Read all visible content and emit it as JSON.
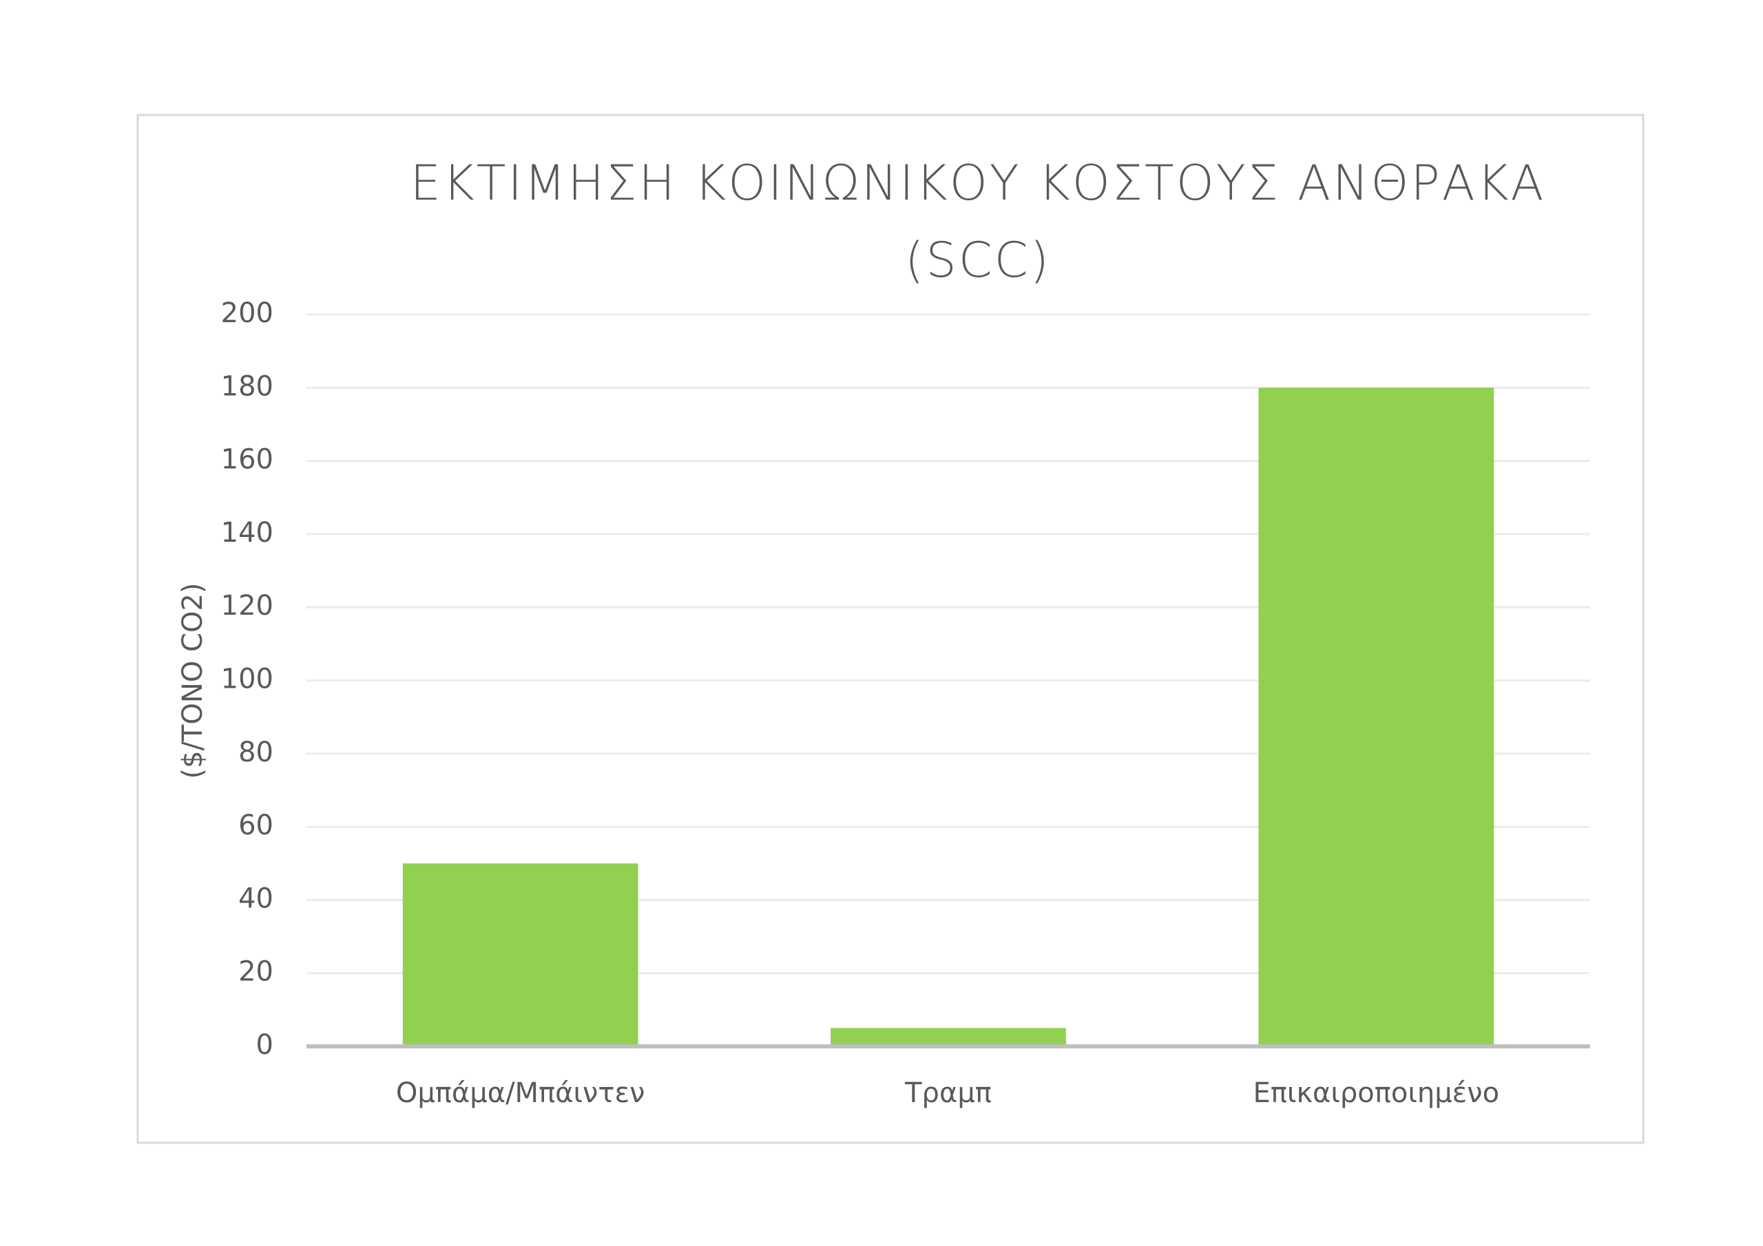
{
  "chart_data": {
    "type": "bar",
    "title": "ΕΚΤΙΜΗΣΗ ΚΟΙΝΩΝΙΚΟΥ ΚΟΣΤΟΥΣ ΑΝΘΡΑΚΑ (SCC)",
    "y_label": "($/ΤΟΝΟ CO2)",
    "categories": [
      "Ομπάμα/Μπάιντεν",
      "Τραμπ",
      "Επικαιροποιημένο"
    ],
    "values": [
      50,
      5,
      180
    ],
    "color": "#92d050",
    "ylim": [
      0,
      200
    ],
    "yticks": [
      0,
      20,
      40,
      60,
      80,
      100,
      120,
      140,
      160,
      180,
      200
    ],
    "grid": true
  }
}
